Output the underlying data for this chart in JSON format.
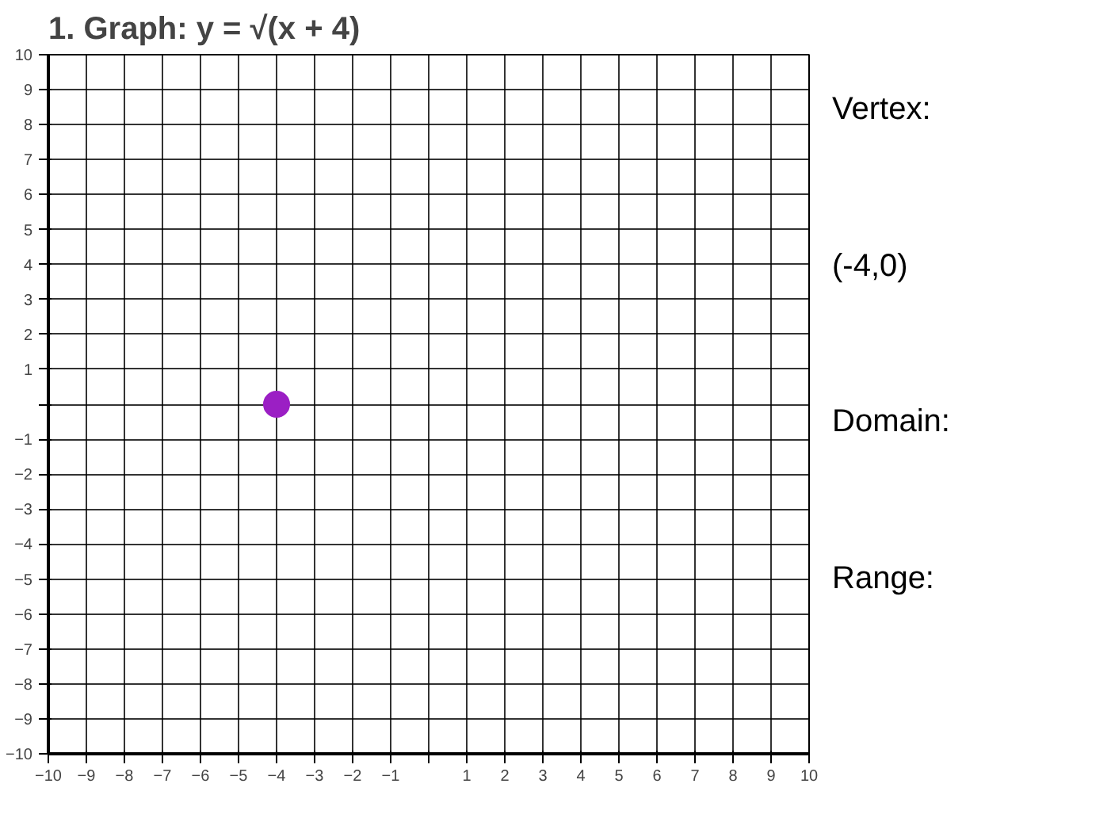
{
  "chart_data": {
    "type": "scatter",
    "title": "1.   Graph: y = √(x + 4)",
    "series": [
      {
        "color": "#9b1fc4",
        "x": [
          -4
        ],
        "values": [
          0
        ]
      }
    ],
    "marker": "circle",
    "grid": true,
    "xlim": [
      -10,
      10
    ],
    "ylim": [
      -10,
      10
    ],
    "xticks": [
      -10,
      -9,
      -8,
      -7,
      -6,
      -5,
      -4,
      -3,
      -2,
      -1,
      {
        "value": 0,
        "label": null
      },
      1,
      2,
      3,
      4,
      5,
      6,
      7,
      8,
      9,
      10
    ],
    "yticks": [
      -10,
      -9,
      -8,
      -7,
      -6,
      -5,
      -4,
      -3,
      -2,
      -1,
      {
        "value": 0,
        "label": null
      },
      1,
      2,
      3,
      4,
      5,
      6,
      7,
      8,
      9,
      10
    ],
    "annotations": [
      "Vertex:",
      "(-4,0)",
      "Domain:",
      "Range:"
    ]
  }
}
